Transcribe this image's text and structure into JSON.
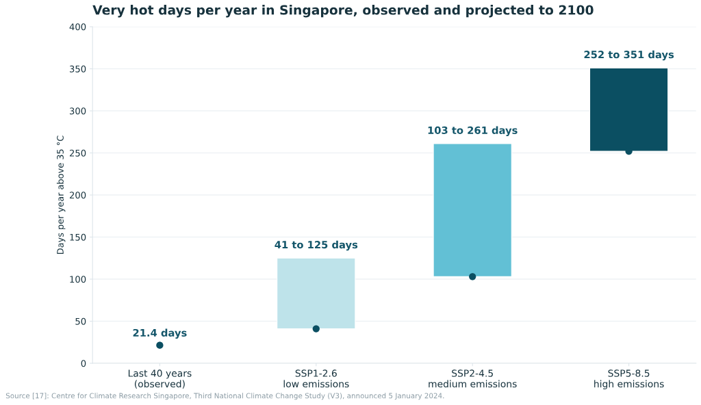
{
  "chart_data": {
    "type": "bar",
    "title": "Very hot days per year in Singapore, observed and projected to 2100",
    "ylabel": "Days per year above 35 °C",
    "categories": [
      "Last 40 years\n(observed)",
      "SSP1-2.6\nlow emissions",
      "SSP2-4.5\nmedium emissions",
      "SSP5-8.5\nhigh emissions"
    ],
    "series": [
      {
        "values": [
          null,
          84,
          158,
          99
        ],
        "base": [
          null,
          41,
          103,
          252
        ],
        "colors": [
          null,
          "#bee3ea",
          "#62c0d5",
          "#0b4f62"
        ]
      },
      {
        "type": "scatter",
        "values": [
          21.4,
          41,
          103,
          252
        ],
        "color": "#0b4f62",
        "value_labels": [
          "21.4 days",
          null,
          null,
          null
        ]
      }
    ],
    "ylim": [
      0,
      400
    ],
    "yticks": [
      0,
      50,
      100,
      150,
      200,
      250,
      300,
      350,
      400
    ],
    "grid": "y",
    "marker": "circle",
    "annotations": [
      {
        "text": "41 to 125 days",
        "x": "SSP1-2.6\nlow emissions",
        "y": 125
      },
      {
        "text": "103 to 261 days",
        "x": "SSP2-4.5\nmedium emissions",
        "y": 261
      },
      {
        "text": "252 to 351 days",
        "x": "SSP5-8.5\nhigh emissions",
        "y": 351
      },
      "Source [17]: Centre for Climate Research Singapore, Third National Climate Change Study (V3), announced 5 January 2024."
    ]
  }
}
